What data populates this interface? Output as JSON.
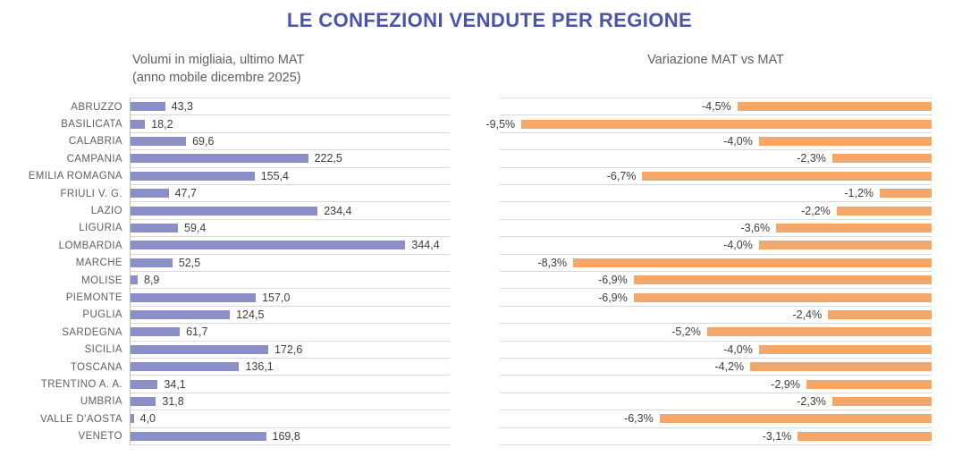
{
  "title": "LE CONFEZIONI VENDUTE PER REGIONE",
  "left_chart": {
    "subtitle_line1": "Volumi in migliaia, ultimo MAT",
    "subtitle_line2": "(anno mobile dicembre 2025)"
  },
  "right_chart": {
    "subtitle": "Variazione MAT vs MAT"
  },
  "colors": {
    "title": "#4A54A8",
    "volume_bar": "#8C8EC8",
    "variation_bar": "#F5A669",
    "gridline": "#D9D9D9",
    "axis_line": "#BFBFBF",
    "label_text": "#5F5F5F",
    "value_text": "#3E3E3E"
  },
  "chart_data": [
    {
      "type": "bar",
      "orientation": "horizontal",
      "title": "Volumi in migliaia, ultimo MAT (anno mobile dicembre 2025)",
      "categories": [
        "ABRUZZO",
        "BASILICATA",
        "CALABRIA",
        "CAMPANIA",
        "EMILIA ROMAGNA",
        "FRIULI V. G.",
        "LAZIO",
        "LIGURIA",
        "LOMBARDIA",
        "MARCHE",
        "MOLISE",
        "PIEMONTE",
        "PUGLIA",
        "SARDEGNA",
        "SICILIA",
        "TOSCANA",
        "TRENTINO A. A.",
        "UMBRIA",
        "VALLE D'AOSTA",
        "VENETO"
      ],
      "values": [
        43.3,
        18.2,
        69.6,
        222.5,
        155.4,
        47.7,
        234.4,
        59.4,
        344.4,
        52.5,
        8.9,
        157.0,
        124.5,
        61.7,
        172.6,
        136.1,
        34.1,
        31.8,
        4.0,
        169.8
      ],
      "value_labels": [
        "43,3",
        "18,2",
        "69,6",
        "222,5",
        "155,4",
        "47,7",
        "234,4",
        "59,4",
        "344,4",
        "52,5",
        "8,9",
        "157,0",
        "124,5",
        "61,7",
        "172,6",
        "136,1",
        "34,1",
        "31,8",
        "4,0",
        "169,8"
      ],
      "xlim": [
        0,
        400
      ],
      "grid": true,
      "legend": false,
      "value_label_position": "after-bar-end"
    },
    {
      "type": "bar",
      "orientation": "horizontal",
      "title": "Variazione MAT vs MAT",
      "categories": [
        "ABRUZZO",
        "BASILICATA",
        "CALABRIA",
        "CAMPANIA",
        "EMILIA ROMAGNA",
        "FRIULI V. G.",
        "LAZIO",
        "LIGURIA",
        "LOMBARDIA",
        "MARCHE",
        "MOLISE",
        "PIEMONTE",
        "PUGLIA",
        "SARDEGNA",
        "SICILIA",
        "TOSCANA",
        "TRENTINO A. A.",
        "UMBRIA",
        "VALLE D'AOSTA",
        "VENETO"
      ],
      "values": [
        -4.5,
        -9.5,
        -4.0,
        -2.3,
        -6.7,
        -1.2,
        -2.2,
        -3.6,
        -4.0,
        -8.3,
        -6.9,
        -6.9,
        -2.4,
        -5.2,
        -4.0,
        -4.2,
        -2.9,
        -2.3,
        -6.3,
        -3.1
      ],
      "value_labels": [
        "-4,5%",
        "-9,5%",
        "-4,0%",
        "-2,3%",
        "-6,7%",
        "-1,2%",
        "-2,2%",
        "-3,6%",
        "-4,0%",
        "-8,3%",
        "-6,9%",
        "-6,9%",
        "-2,4%",
        "-5,2%",
        "-4,0%",
        "-4,2%",
        "-2,9%",
        "-2,3%",
        "-6,3%",
        "-3,1%"
      ],
      "xlim": [
        -10,
        0
      ],
      "grid": true,
      "legend": false,
      "value_label_position": "before-bar-start",
      "bars_anchored": "right"
    }
  ]
}
